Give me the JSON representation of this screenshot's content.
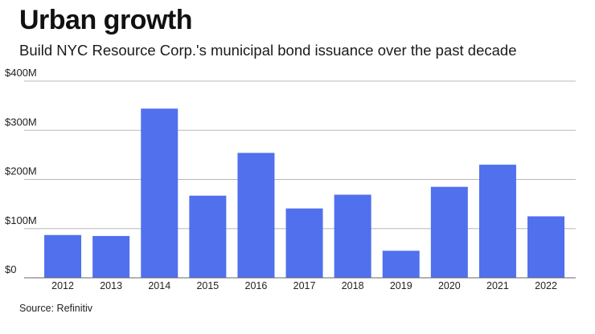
{
  "header": {
    "title": "Urban growth",
    "subtitle": "Build NYC Resource Corp.'s municipal bond issuance over the past decade"
  },
  "footer": {
    "source": "Source: Refinitiv"
  },
  "colors": {
    "bar": "#5070ee",
    "grid": "#b8b8b8",
    "baseline": "#666666"
  },
  "chart_data": {
    "type": "bar",
    "categories": [
      "2012",
      "2013",
      "2014",
      "2015",
      "2016",
      "2017",
      "2018",
      "2019",
      "2020",
      "2021",
      "2022"
    ],
    "values": [
      87,
      85,
      344,
      167,
      254,
      141,
      169,
      55,
      185,
      230,
      125
    ],
    "ylim": [
      0,
      400
    ],
    "yticks": [
      0,
      100,
      200,
      300,
      400
    ],
    "ytick_labels": [
      "$0",
      "$100M",
      "$200M",
      "$300M",
      "$400M"
    ],
    "grid": true,
    "xlabel": "",
    "ylabel": ""
  }
}
